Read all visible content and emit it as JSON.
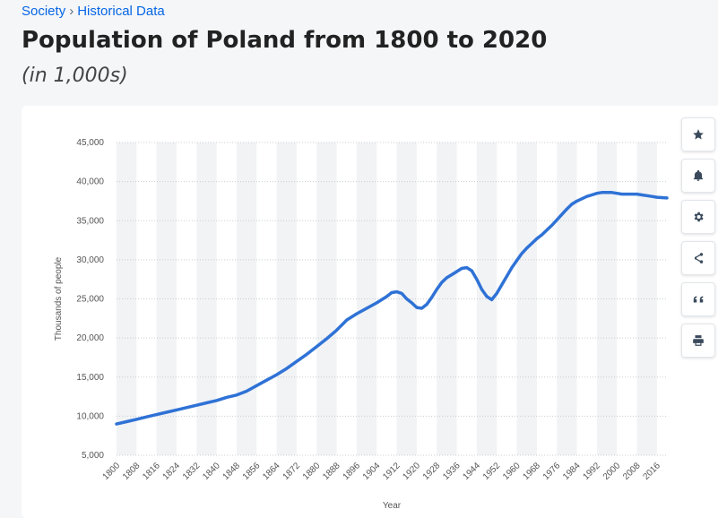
{
  "breadcrumb": {
    "section": "Society",
    "separator": "›",
    "current": "Historical Data"
  },
  "page": {
    "title": "Population of Poland from 1800 to 2020",
    "subtitle": "(in 1,000s)"
  },
  "toolbar": {
    "tools": [
      "star-icon",
      "bell-icon",
      "gear-icon",
      "share-icon",
      "quote-icon",
      "print-icon"
    ]
  },
  "colors": {
    "line": "#2f72d6",
    "grid_band": "#f1f3f5",
    "grid_line": "#c8cdd2",
    "axis_text": "#555555"
  },
  "chart_data": {
    "type": "line",
    "title": "Population of Poland from 1800 to 2020",
    "xlabel": "Year",
    "ylabel": "Thousands of people",
    "ylim": [
      5000,
      45000
    ],
    "yticks": [
      5000,
      10000,
      15000,
      20000,
      25000,
      30000,
      35000,
      40000,
      45000
    ],
    "ytick_labels": [
      "5,000",
      "10,000",
      "15,000",
      "20,000",
      "25,000",
      "30,000",
      "35,000",
      "40,000",
      "45,000"
    ],
    "xlim": [
      1800,
      2020
    ],
    "xticks": [
      "1800",
      "1808",
      "1816",
      "1824",
      "1832",
      "1840",
      "1848",
      "1856",
      "1864",
      "1872",
      "1880",
      "1888",
      "1896",
      "1904",
      "1912",
      "1920",
      "1928",
      "1936",
      "1944",
      "1952",
      "1960",
      "1968",
      "1976",
      "1984",
      "1992",
      "2000",
      "2008",
      "2016"
    ],
    "series": [
      {
        "name": "Population",
        "x": [
          1800,
          1804,
          1808,
          1812,
          1816,
          1820,
          1824,
          1828,
          1832,
          1836,
          1840,
          1844,
          1848,
          1852,
          1856,
          1860,
          1864,
          1868,
          1872,
          1876,
          1880,
          1884,
          1888,
          1892,
          1896,
          1900,
          1904,
          1908,
          1910,
          1912,
          1914,
          1916,
          1918,
          1920,
          1922,
          1924,
          1926,
          1928,
          1930,
          1932,
          1934,
          1936,
          1938,
          1940,
          1942,
          1944,
          1946,
          1948,
          1950,
          1952,
          1954,
          1956,
          1958,
          1960,
          1962,
          1964,
          1966,
          1968,
          1970,
          1972,
          1974,
          1976,
          1978,
          1980,
          1982,
          1984,
          1986,
          1988,
          1990,
          1992,
          1994,
          1996,
          1998,
          2000,
          2002,
          2004,
          2006,
          2008,
          2010,
          2012,
          2014,
          2016,
          2018,
          2020
        ],
        "values": [
          9000,
          9300,
          9600,
          9900,
          10200,
          10500,
          10800,
          11100,
          11400,
          11700,
          12000,
          12400,
          12700,
          13200,
          13900,
          14600,
          15300,
          16100,
          17000,
          17900,
          18900,
          19900,
          21000,
          22300,
          23100,
          23800,
          24500,
          25300,
          25800,
          25900,
          25700,
          25000,
          24500,
          23900,
          23800,
          24300,
          25200,
          26200,
          27100,
          27700,
          28100,
          28500,
          28900,
          29000,
          28600,
          27500,
          26200,
          25300,
          24900,
          25700,
          26800,
          27900,
          29000,
          29900,
          30800,
          31500,
          32100,
          32700,
          33200,
          33800,
          34400,
          35100,
          35800,
          36500,
          37100,
          37500,
          37800,
          38100,
          38300,
          38500,
          38600,
          38600,
          38600,
          38500,
          38400,
          38400,
          38400,
          38400,
          38300,
          38200,
          38100,
          38000,
          37950,
          37900
        ]
      }
    ]
  }
}
